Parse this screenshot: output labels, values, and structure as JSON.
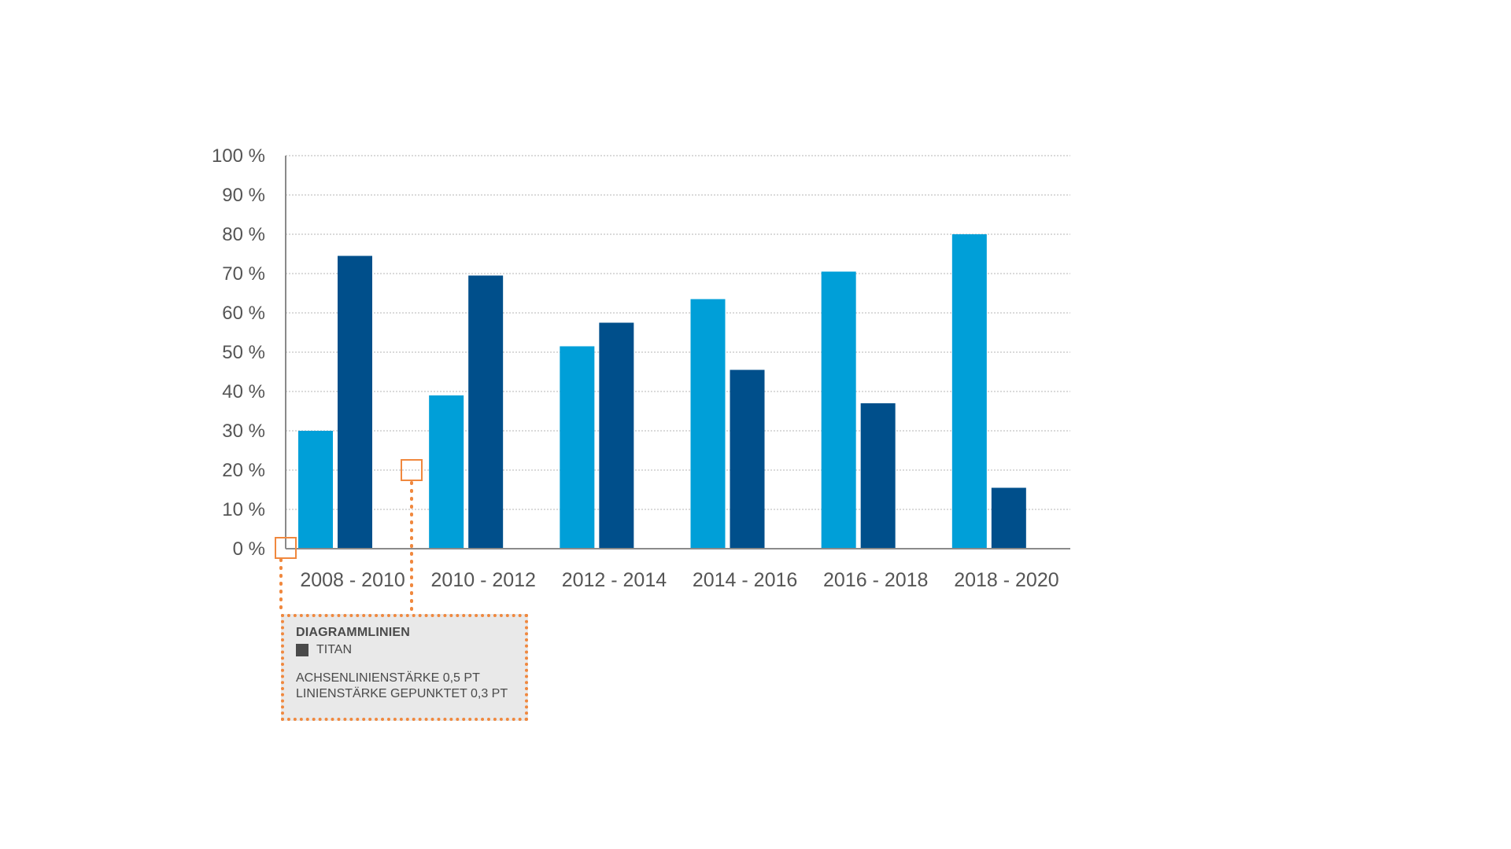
{
  "chart_data": {
    "type": "bar",
    "categories": [
      "2008 - 2010",
      "2010 - 2012",
      "2012 - 2014",
      "2014 - 2016",
      "2016 - 2018",
      "2018 - 2020"
    ],
    "series": [
      {
        "values": [
          30,
          39,
          51.5,
          63.5,
          70.5,
          80
        ],
        "color": "#009fd8"
      },
      {
        "values": [
          74.5,
          69.5,
          57.5,
          45.5,
          37,
          15.5
        ],
        "color": "#004f8b"
      }
    ],
    "yticks": [
      "0 %",
      "10 %",
      "20 %",
      "30 %",
      "40 %",
      "50 %",
      "60 %",
      "70 %",
      "80 %",
      "90 %",
      "100 %"
    ],
    "ylim": [
      0,
      100
    ],
    "grid": true,
    "grid_style": "dotted",
    "legend": "none"
  },
  "annotation": {
    "title": "DIAGRAMMLINIEN",
    "swatch_label": "TITAN",
    "swatch_color": "#4a4a4a",
    "line1": "ACHSENLINIENSTÄRKE 0,5 PT",
    "line2": "LINIENSTÄRKE GEPUNKTET 0,3 PT",
    "accent_color": "#f0883e"
  }
}
